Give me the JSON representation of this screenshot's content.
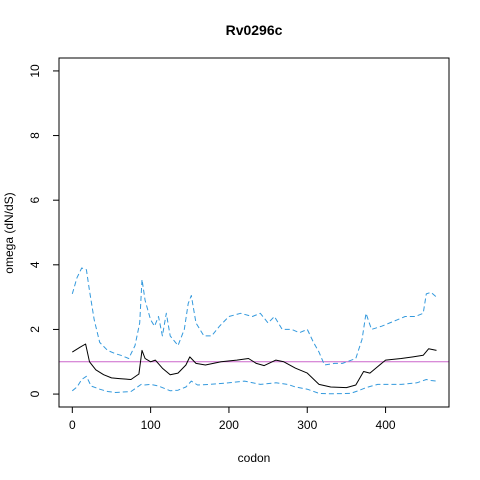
{
  "chart_data": {
    "type": "line",
    "title": "Rv0296c",
    "xlabel": "codon",
    "ylabel": "omega (dN/dS)",
    "xlim": [
      -17,
      481
    ],
    "ylim": [
      -0.4,
      10.4
    ],
    "xticks": [
      0,
      100,
      200,
      300,
      400
    ],
    "yticks": [
      0,
      2,
      4,
      6,
      8,
      10
    ],
    "reference_line": {
      "y": 1,
      "color": "#cc66cc"
    },
    "grid": false,
    "legend": "none",
    "series": [
      {
        "role": "estimate",
        "color": "#000000",
        "style": "solid",
        "points": [
          [
            0,
            1.3
          ],
          [
            10,
            1.45
          ],
          [
            17,
            1.55
          ],
          [
            22,
            1.0
          ],
          [
            30,
            0.75
          ],
          [
            40,
            0.6
          ],
          [
            50,
            0.5
          ],
          [
            60,
            0.48
          ],
          [
            75,
            0.45
          ],
          [
            85,
            0.62
          ],
          [
            89,
            1.35
          ],
          [
            93,
            1.1
          ],
          [
            100,
            1.0
          ],
          [
            106,
            1.05
          ],
          [
            115,
            0.8
          ],
          [
            125,
            0.6
          ],
          [
            135,
            0.65
          ],
          [
            145,
            0.9
          ],
          [
            150,
            1.15
          ],
          [
            158,
            0.95
          ],
          [
            170,
            0.9
          ],
          [
            190,
            1.0
          ],
          [
            210,
            1.05
          ],
          [
            225,
            1.1
          ],
          [
            235,
            0.95
          ],
          [
            245,
            0.88
          ],
          [
            260,
            1.05
          ],
          [
            270,
            1.0
          ],
          [
            285,
            0.8
          ],
          [
            300,
            0.65
          ],
          [
            315,
            0.3
          ],
          [
            330,
            0.22
          ],
          [
            350,
            0.2
          ],
          [
            362,
            0.28
          ],
          [
            372,
            0.7
          ],
          [
            380,
            0.65
          ],
          [
            390,
            0.85
          ],
          [
            400,
            1.05
          ],
          [
            420,
            1.1
          ],
          [
            435,
            1.15
          ],
          [
            448,
            1.2
          ],
          [
            455,
            1.4
          ],
          [
            465,
            1.35
          ]
        ]
      },
      {
        "role": "upper bound",
        "color": "#3399dd",
        "style": "dashed",
        "points": [
          [
            0,
            3.1
          ],
          [
            6,
            3.6
          ],
          [
            12,
            3.9
          ],
          [
            18,
            3.85
          ],
          [
            22,
            3.2
          ],
          [
            28,
            2.3
          ],
          [
            35,
            1.6
          ],
          [
            45,
            1.35
          ],
          [
            55,
            1.25
          ],
          [
            62,
            1.2
          ],
          [
            72,
            1.1
          ],
          [
            80,
            1.5
          ],
          [
            86,
            2.2
          ],
          [
            89,
            3.55
          ],
          [
            93,
            2.9
          ],
          [
            100,
            2.3
          ],
          [
            105,
            2.1
          ],
          [
            110,
            2.4
          ],
          [
            115,
            1.8
          ],
          [
            120,
            2.5
          ],
          [
            125,
            1.8
          ],
          [
            135,
            1.5
          ],
          [
            143,
            2.0
          ],
          [
            148,
            2.8
          ],
          [
            152,
            3.05
          ],
          [
            158,
            2.2
          ],
          [
            168,
            1.8
          ],
          [
            178,
            1.8
          ],
          [
            188,
            2.1
          ],
          [
            200,
            2.4
          ],
          [
            215,
            2.5
          ],
          [
            230,
            2.4
          ],
          [
            240,
            2.5
          ],
          [
            250,
            2.2
          ],
          [
            258,
            2.4
          ],
          [
            268,
            2.0
          ],
          [
            280,
            2.0
          ],
          [
            290,
            1.9
          ],
          [
            300,
            2.0
          ],
          [
            308,
            1.6
          ],
          [
            315,
            1.3
          ],
          [
            322,
            0.9
          ],
          [
            335,
            0.95
          ],
          [
            345,
            0.95
          ],
          [
            362,
            1.1
          ],
          [
            370,
            1.7
          ],
          [
            375,
            2.5
          ],
          [
            382,
            2.0
          ],
          [
            395,
            2.1
          ],
          [
            405,
            2.2
          ],
          [
            415,
            2.3
          ],
          [
            425,
            2.4
          ],
          [
            438,
            2.4
          ],
          [
            448,
            2.5
          ],
          [
            452,
            3.1
          ],
          [
            458,
            3.15
          ],
          [
            465,
            3.0
          ]
        ]
      },
      {
        "role": "lower bound",
        "color": "#3399dd",
        "style": "dashed",
        "points": [
          [
            0,
            0.1
          ],
          [
            6,
            0.22
          ],
          [
            12,
            0.45
          ],
          [
            18,
            0.55
          ],
          [
            24,
            0.25
          ],
          [
            35,
            0.15
          ],
          [
            45,
            0.08
          ],
          [
            55,
            0.05
          ],
          [
            75,
            0.08
          ],
          [
            88,
            0.3
          ],
          [
            92,
            0.28
          ],
          [
            100,
            0.3
          ],
          [
            110,
            0.25
          ],
          [
            125,
            0.1
          ],
          [
            135,
            0.12
          ],
          [
            145,
            0.22
          ],
          [
            152,
            0.4
          ],
          [
            160,
            0.28
          ],
          [
            175,
            0.3
          ],
          [
            200,
            0.35
          ],
          [
            220,
            0.4
          ],
          [
            240,
            0.3
          ],
          [
            260,
            0.35
          ],
          [
            275,
            0.3
          ],
          [
            285,
            0.22
          ],
          [
            300,
            0.15
          ],
          [
            315,
            0.02
          ],
          [
            330,
            0.01
          ],
          [
            355,
            0.02
          ],
          [
            365,
            0.1
          ],
          [
            375,
            0.2
          ],
          [
            390,
            0.3
          ],
          [
            405,
            0.3
          ],
          [
            420,
            0.3
          ],
          [
            440,
            0.35
          ],
          [
            452,
            0.45
          ],
          [
            458,
            0.42
          ],
          [
            465,
            0.4
          ]
        ]
      }
    ]
  }
}
